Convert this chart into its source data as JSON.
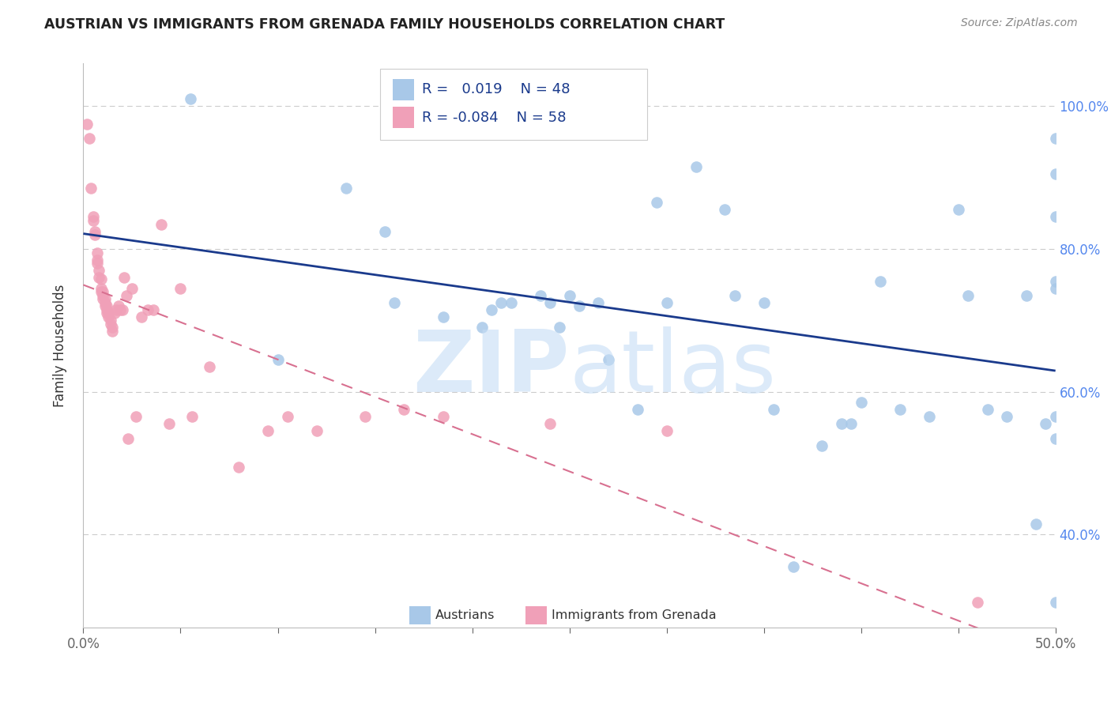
{
  "title": "AUSTRIAN VS IMMIGRANTS FROM GRENADA FAMILY HOUSEHOLDS CORRELATION CHART",
  "source": "Source: ZipAtlas.com",
  "ylabel": "Family Households",
  "y_tick_labels": [
    "100.0%",
    "80.0%",
    "60.0%",
    "40.0%"
  ],
  "y_tick_values": [
    1.0,
    0.8,
    0.6,
    0.4
  ],
  "x_range": [
    0.0,
    0.5
  ],
  "y_range": [
    0.27,
    1.06
  ],
  "blue_scatter_color": "#a8c8e8",
  "pink_scatter_color": "#f0a0b8",
  "blue_line_color": "#1a3a8c",
  "pink_line_color": "#d87090",
  "legend_label_austrians": "Austrians",
  "legend_label_immigrants": "Immigrants from Grenada",
  "austrians_x": [
    0.055,
    0.1,
    0.135,
    0.155,
    0.16,
    0.185,
    0.205,
    0.21,
    0.215,
    0.22,
    0.235,
    0.24,
    0.245,
    0.25,
    0.255,
    0.265,
    0.27,
    0.285,
    0.295,
    0.3,
    0.315,
    0.33,
    0.335,
    0.35,
    0.355,
    0.365,
    0.38,
    0.39,
    0.395,
    0.4,
    0.41,
    0.42,
    0.435,
    0.45,
    0.455,
    0.465,
    0.475,
    0.485,
    0.49,
    0.495,
    0.5,
    0.5,
    0.5,
    0.5,
    0.5,
    0.5,
    0.5,
    0.5
  ],
  "austrians_y": [
    1.01,
    0.645,
    0.885,
    0.825,
    0.725,
    0.705,
    0.69,
    0.715,
    0.725,
    0.725,
    0.735,
    0.725,
    0.69,
    0.735,
    0.72,
    0.725,
    0.645,
    0.575,
    0.865,
    0.725,
    0.915,
    0.855,
    0.735,
    0.725,
    0.575,
    0.355,
    0.525,
    0.555,
    0.555,
    0.585,
    0.755,
    0.575,
    0.565,
    0.855,
    0.735,
    0.575,
    0.565,
    0.735,
    0.415,
    0.555,
    0.565,
    0.535,
    0.905,
    0.845,
    0.745,
    0.305,
    0.755,
    0.955
  ],
  "grenada_x": [
    0.002,
    0.003,
    0.004,
    0.005,
    0.005,
    0.006,
    0.006,
    0.007,
    0.007,
    0.007,
    0.008,
    0.008,
    0.009,
    0.009,
    0.009,
    0.01,
    0.01,
    0.01,
    0.011,
    0.011,
    0.011,
    0.012,
    0.012,
    0.012,
    0.013,
    0.013,
    0.014,
    0.014,
    0.015,
    0.015,
    0.016,
    0.017,
    0.018,
    0.019,
    0.02,
    0.021,
    0.022,
    0.023,
    0.025,
    0.027,
    0.03,
    0.033,
    0.036,
    0.04,
    0.044,
    0.05,
    0.056,
    0.065,
    0.08,
    0.095,
    0.105,
    0.12,
    0.145,
    0.165,
    0.185,
    0.24,
    0.3,
    0.46
  ],
  "grenada_y": [
    0.975,
    0.955,
    0.885,
    0.845,
    0.84,
    0.825,
    0.82,
    0.795,
    0.785,
    0.78,
    0.77,
    0.76,
    0.758,
    0.745,
    0.74,
    0.74,
    0.735,
    0.73,
    0.73,
    0.725,
    0.72,
    0.72,
    0.715,
    0.71,
    0.71,
    0.705,
    0.7,
    0.695,
    0.69,
    0.685,
    0.71,
    0.715,
    0.72,
    0.715,
    0.715,
    0.76,
    0.735,
    0.535,
    0.745,
    0.565,
    0.705,
    0.715,
    0.715,
    0.835,
    0.555,
    0.745,
    0.565,
    0.635,
    0.495,
    0.545,
    0.565,
    0.545,
    0.565,
    0.575,
    0.565,
    0.555,
    0.545,
    0.305
  ]
}
